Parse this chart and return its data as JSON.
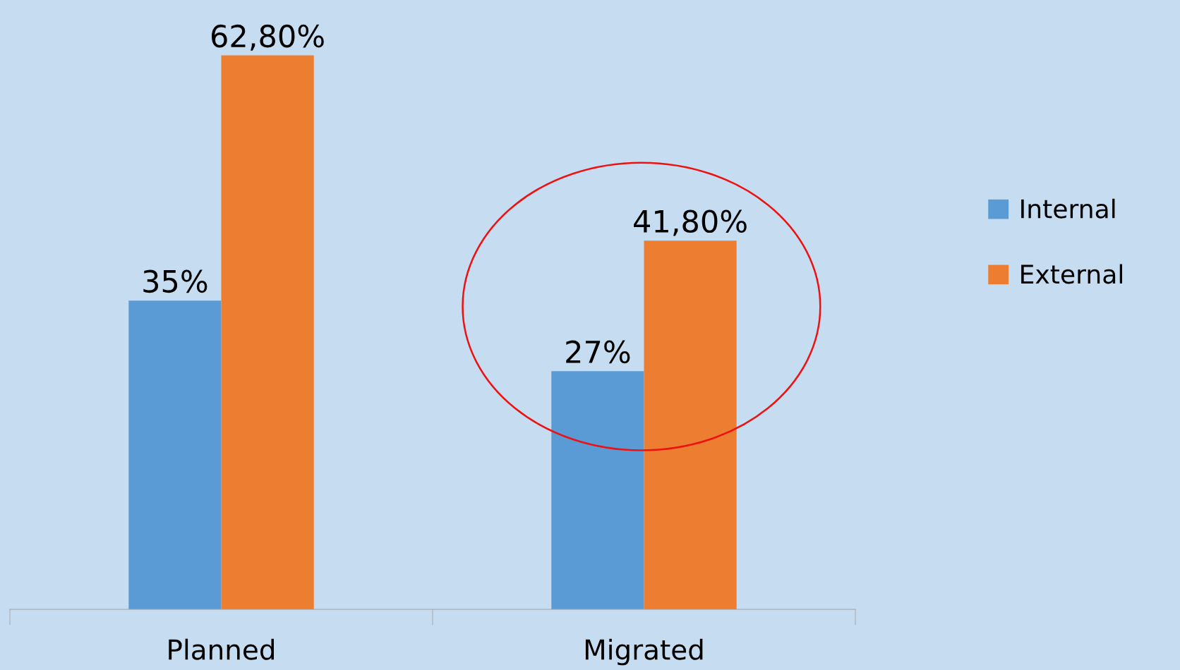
{
  "chart_data": {
    "type": "bar",
    "categories": [
      "Planned",
      "Migrated"
    ],
    "series": [
      {
        "name": "Internal",
        "color": "#5b9bd5",
        "values": [
          35,
          27
        ],
        "value_labels": [
          "35%",
          "27%"
        ]
      },
      {
        "name": "External",
        "color": "#ed7d31",
        "values": [
          62.8,
          41.8
        ],
        "value_labels": [
          "62,80%",
          "41,80%"
        ]
      }
    ],
    "legend": "right",
    "grid": false,
    "tick_labels": "x"
  }
}
